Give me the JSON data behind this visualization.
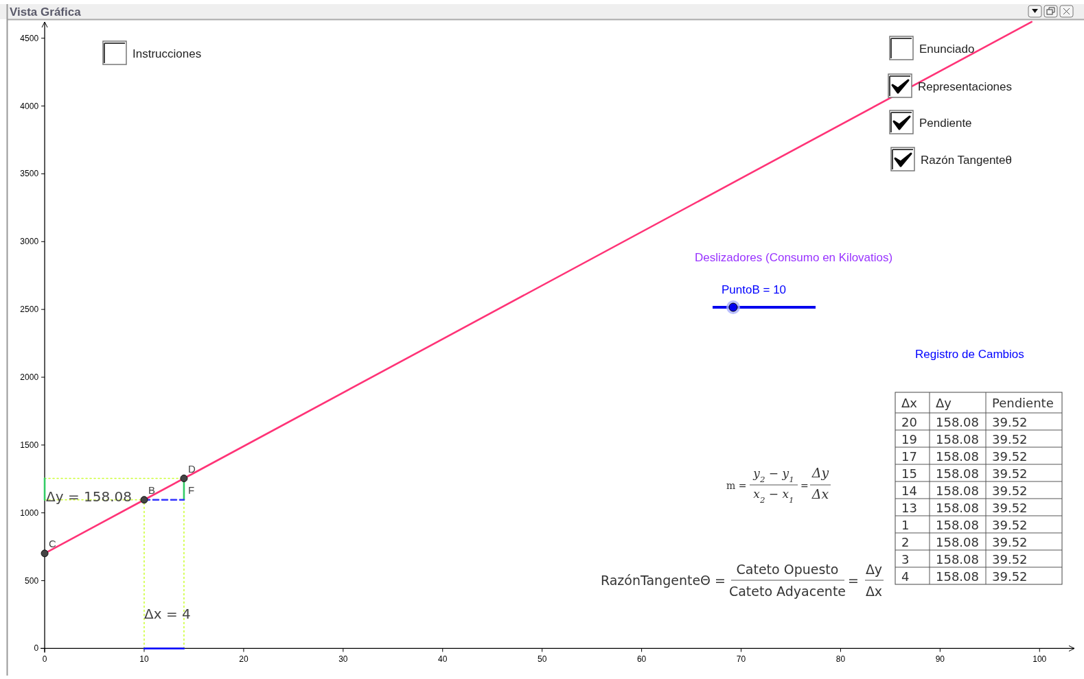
{
  "chart_data": {
    "type": "line",
    "title": "Vista Gráfica",
    "xlim": [
      -3.8,
      103.5
    ],
    "ylim": [
      -200,
      4630
    ],
    "xticks": [
      0,
      10,
      20,
      30,
      40,
      50,
      60,
      70,
      80,
      90,
      100
    ],
    "yticks": [
      0,
      500,
      1000,
      1500,
      2000,
      2500,
      3000,
      3500,
      4000,
      4500
    ],
    "series": [
      {
        "x": [
          0,
          14
        ],
        "values": [
          1254,
          1254
        ],
        "color": "#ccff33",
        "line_style": "dotted"
      },
      {
        "x": [
          0,
          10
        ],
        "values": [
          1096,
          1096
        ],
        "color": "#ccff33",
        "line_style": "dotted"
      },
      {
        "x": [
          10,
          10
        ],
        "values": [
          0,
          1096
        ],
        "color": "#ccff33",
        "line_style": "dotted"
      },
      {
        "x": [
          14,
          14
        ],
        "values": [
          0,
          1254
        ],
        "color": "#ccff33",
        "line_style": "dotted"
      },
      {
        "x": [
          0,
          0
        ],
        "values": [
          1096,
          1254
        ],
        "color": "#33cc66"
      },
      {
        "x": [
          14,
          14
        ],
        "values": [
          1096,
          1254
        ],
        "color": "#33cc66"
      },
      {
        "x": [
          10,
          14
        ],
        "values": [
          0,
          0
        ],
        "color": "#0000ff"
      },
      {
        "x": [
          10,
          14
        ],
        "values": [
          1096,
          1096
        ],
        "color": "#3333ff",
        "line_style": "dashed"
      },
      {
        "x": [
          0,
          10,
          14,
          99.2
        ],
        "values": [
          701,
          1096,
          1254,
          4621
        ],
        "color": "#ff3377"
      },
      {
        "type": "scatter",
        "x": [
          0,
          10,
          14
        ],
        "values": [
          701,
          1096,
          1254
        ],
        "color": "#444444",
        "marker": "circle"
      }
    ],
    "annotations": [
      "Instrucciones",
      "Enunciado",
      "Representaciones",
      "Pendiente",
      "Razón Tangenteθ",
      "Deslizadores (Consumo en Kilovatios)",
      "PuntoB = 10",
      "Registro de Cambios",
      "m =",
      "y$_{2}$ − y$_{1}$",
      "x$_{2}$ − x$_{1}$",
      "=",
      "Δy",
      "Δx",
      "RazónTangenteΘ =",
      "Cateto Opuesto",
      "Cateto Adyacente",
      "=",
      "Δy",
      "Δx",
      "Δx",
      "Δy",
      "Pendiente",
      "20",
      "158.08",
      "39.52",
      "19",
      "158.08",
      "39.52",
      "17",
      "158.08",
      "39.52",
      "15",
      "158.08",
      "39.52",
      "14",
      "158.08",
      "39.52",
      "13",
      "158.08",
      "39.52",
      "1",
      "158.08",
      "39.52",
      "2",
      "158.08",
      "39.52",
      "3",
      "158.08",
      "39.52",
      "4",
      "158.08",
      "39.52",
      "Δy = 158.08",
      "Δx = 4",
      {
        "text": "C",
        "x": 0,
        "y": 701
      },
      {
        "text": "B",
        "x": 10,
        "y": 1096
      },
      {
        "text": "D",
        "x": 14,
        "y": 1254
      },
      {
        "text": "F",
        "x": 14,
        "y": 1096
      }
    ]
  }
}
